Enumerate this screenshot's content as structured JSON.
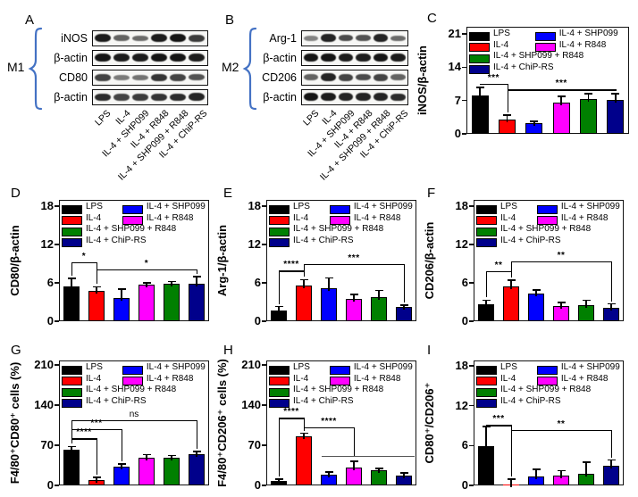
{
  "page": {
    "background": "#ffffff"
  },
  "groups": [
    {
      "label": "LPS",
      "color": "#000000"
    },
    {
      "label": "IL-4",
      "color": "#ff0000"
    },
    {
      "label": "IL-4 + SHP099",
      "color": "#0000ff"
    },
    {
      "label": "IL-4 + R848",
      "color": "#ff00ff"
    },
    {
      "label": "IL-4 + SHP099 + R848",
      "color": "#008000"
    },
    {
      "label": "IL-4 + ChiP-RS",
      "color": "#00008b"
    }
  ],
  "lane_labels": [
    "LPS",
    "IL-4",
    "IL-4 + SHP099",
    "IL-4 + R848",
    "IL-4 + SHP099 + R848",
    "IL-4 + ChiP-RS"
  ],
  "blot_panels": [
    {
      "letter": "A",
      "group_label": "M1",
      "brace_color": "#4472c4",
      "rows": [
        {
          "label": "iNOS",
          "bands": [
            0.95,
            0.5,
            0.45,
            0.95,
            1.0,
            0.75
          ]
        },
        {
          "label": "β-actin",
          "bands": [
            1.0,
            0.95,
            0.95,
            1.0,
            1.0,
            0.95
          ]
        },
        {
          "label": "CD80",
          "bands": [
            0.7,
            0.35,
            0.4,
            0.8,
            0.7,
            0.6
          ]
        },
        {
          "label": "β-actin",
          "bands": [
            0.85,
            0.7,
            0.75,
            0.8,
            0.85,
            0.9
          ]
        }
      ]
    },
    {
      "letter": "B",
      "group_label": "M2",
      "brace_color": "#4472c4",
      "rows": [
        {
          "label": "Arg-1",
          "bands": [
            0.3,
            0.9,
            0.65,
            0.6,
            0.9,
            0.45
          ]
        },
        {
          "label": "β-actin",
          "bands": [
            1.0,
            1.0,
            0.95,
            0.95,
            1.0,
            0.95
          ]
        },
        {
          "label": "CD206",
          "bands": [
            0.5,
            0.9,
            0.7,
            0.65,
            0.7,
            0.5
          ]
        },
        {
          "label": "β-actin",
          "bands": [
            1.0,
            0.95,
            0.9,
            0.9,
            0.9,
            0.85
          ]
        }
      ]
    }
  ],
  "chart_data": [
    {
      "panel": "C",
      "type": "bar",
      "ylabel": "iNOS/β-actin",
      "ylim": [
        0,
        22.5
      ],
      "yticks": [
        0,
        7,
        14,
        21
      ],
      "grid": false,
      "legend_position": "top-inside",
      "categories": [
        "LPS",
        "IL-4",
        "IL-4 + SHP099",
        "IL-4 + R848",
        "IL-4 + SHP099 + R848",
        "IL-4 + ChiP-RS"
      ],
      "values": [
        8.0,
        3.0,
        2.2,
        6.6,
        7.3,
        7.2
      ],
      "errors": [
        1.8,
        0.9,
        0.4,
        1.3,
        1.1,
        1.2
      ],
      "significance": [
        {
          "from": 0,
          "to": 1,
          "label": "***",
          "y": 10.5
        },
        {
          "from": 1,
          "to": 5,
          "label": "***",
          "y": 9.3
        }
      ]
    },
    {
      "panel": "D",
      "type": "bar",
      "ylabel": "CD80/β-actin",
      "ylim": [
        0,
        19
      ],
      "yticks": [
        0,
        6,
        12,
        18
      ],
      "grid": false,
      "legend_position": "top-inside",
      "categories": [
        "LPS",
        "IL-4",
        "IL-4 + SHP099",
        "IL-4 + R848",
        "IL-4 + SHP099 + R848",
        "IL-4 + ChiP-RS"
      ],
      "values": [
        5.4,
        4.7,
        3.6,
        5.7,
        5.8,
        5.8
      ],
      "errors": [
        1.3,
        0.7,
        1.4,
        0.3,
        0.4,
        1.2
      ],
      "significance": [
        {
          "from": 0,
          "to": 1,
          "label": "*",
          "y": 9.2
        },
        {
          "from": 1,
          "to": 5,
          "label": "*",
          "y": 8.1
        }
      ]
    },
    {
      "panel": "E",
      "type": "bar",
      "ylabel": "Arg-1/β-actin",
      "ylim": [
        0,
        19
      ],
      "yticks": [
        0,
        6,
        12,
        18
      ],
      "grid": false,
      "legend_position": "top-inside",
      "categories": [
        "LPS",
        "IL-4",
        "IL-4 + SHP099",
        "IL-4 + R848",
        "IL-4 + SHP099 + R848",
        "IL-4 + ChiP-RS"
      ],
      "values": [
        1.7,
        5.6,
        5.2,
        3.5,
        3.8,
        2.3
      ],
      "errors": [
        0.6,
        0.9,
        1.6,
        0.7,
        1.0,
        0.2
      ],
      "significance": [
        {
          "from": 0,
          "to": 1,
          "label": "****",
          "y": 7.9
        },
        {
          "from": 1,
          "to": 5,
          "label": "***",
          "y": 9.0
        }
      ]
    },
    {
      "panel": "F",
      "type": "bar",
      "ylabel": "CD206/β-actin",
      "ylim": [
        0,
        19
      ],
      "yticks": [
        0,
        6,
        12,
        18
      ],
      "grid": false,
      "legend_position": "top-inside",
      "categories": [
        "LPS",
        "IL-4",
        "IL-4 + SHP099",
        "IL-4 + R848",
        "IL-4 + SHP099 + R848",
        "IL-4 + ChiP-RS"
      ],
      "values": [
        2.7,
        5.4,
        4.3,
        2.4,
        2.5,
        2.1
      ],
      "errors": [
        0.6,
        1.0,
        0.6,
        0.5,
        0.8,
        0.6
      ],
      "significance": [
        {
          "from": 0,
          "to": 1,
          "label": "**",
          "y": 7.8
        },
        {
          "from": 1,
          "to": 5,
          "label": "**",
          "y": 9.4
        }
      ]
    },
    {
      "panel": "G",
      "type": "bar",
      "ylabel": "F4/80⁺CD80⁺ cells (%)",
      "ylim": [
        0,
        218
      ],
      "yticks": [
        0,
        70,
        140,
        210
      ],
      "grid": false,
      "legend_position": "top-inside",
      "categories": [
        "LPS",
        "IL-4",
        "IL-4 + SHP099",
        "IL-4 + R848",
        "IL-4 + SHP099 + R848",
        "IL-4 + ChiP-RS"
      ],
      "values": [
        62,
        10,
        33,
        48,
        48,
        55
      ],
      "errors": [
        6,
        4,
        4,
        6,
        4,
        4
      ],
      "significance": [
        {
          "from": 0,
          "to": 1,
          "label": "****",
          "y": 82
        },
        {
          "from": 0,
          "to": 2,
          "label": "***",
          "y": 98
        },
        {
          "from": 0,
          "to": 5,
          "label": "ns",
          "y": 114
        }
      ]
    },
    {
      "panel": "H",
      "type": "bar",
      "ylabel": "F4/80⁺CD206⁺ cells (%)",
      "ylim": [
        0,
        218
      ],
      "yticks": [
        0,
        70,
        140,
        210
      ],
      "grid": false,
      "legend_position": "top-inside",
      "categories": [
        "LPS",
        "IL-4",
        "IL-4 + SHP099",
        "IL-4 + R848",
        "IL-4 + SHP099 + R848",
        "IL-4 + ChiP-RS"
      ],
      "values": [
        8,
        85,
        19,
        31,
        26,
        17
      ],
      "errors": [
        3,
        6,
        4,
        11,
        4,
        5
      ],
      "significance": [
        {
          "from": 0,
          "to": 1,
          "label": "****",
          "y": 118
        },
        {
          "from": 1,
          "to": 3,
          "label": "****",
          "y": 101,
          "right_drop_to": 52
        }
      ],
      "lines": [
        {
          "from": 2,
          "to": 5,
          "y": 52,
          "pad_right": 12,
          "color": "#555555"
        }
      ]
    },
    {
      "panel": "I",
      "type": "bar",
      "ylabel": "CD80⁺/CD206⁺",
      "ylim": [
        0,
        18.8
      ],
      "yticks": [
        0,
        6,
        12,
        18
      ],
      "grid": false,
      "legend_position": "top-inside",
      "categories": [
        "LPS",
        "IL-4",
        "IL-4 + SHP099",
        "IL-4 + R848",
        "IL-4 + SHP099 + R848",
        "IL-4 + ChiP-RS"
      ],
      "values": [
        5.9,
        0.2,
        1.4,
        1.5,
        1.8,
        2.9
      ],
      "errors": [
        3.0,
        0.7,
        1.0,
        0.7,
        1.7,
        0.9
      ],
      "significance": [
        {
          "from": 0,
          "to": 1,
          "label": "***",
          "y": 9.1
        },
        {
          "from": 1,
          "to": 5,
          "label": "**",
          "y": 8.3
        }
      ]
    }
  ]
}
